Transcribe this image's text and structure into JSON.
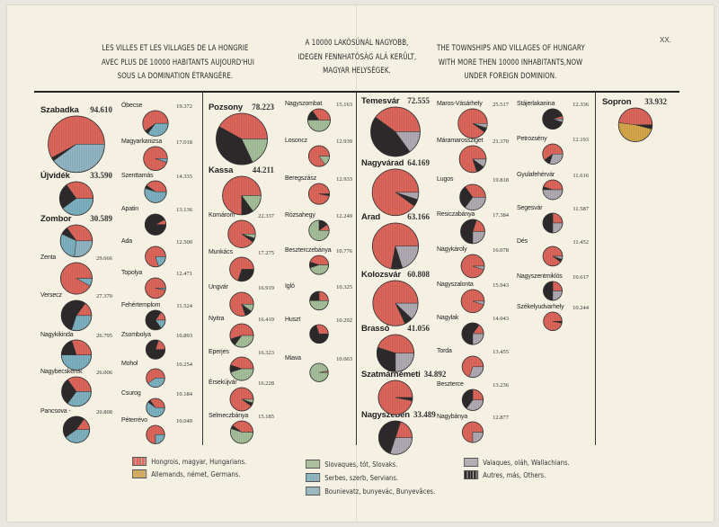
{
  "header": {
    "french": [
      "LES VILLES ET LES VILLAGES DE LA HONGRIE",
      "AVEC PLUS DE 10000 HABITANTS AUJOURD'HUI",
      "SOUS LA DOMINATION ÉTRANGÈRE."
    ],
    "hungarian": [
      "A 10000 LAKÓSÚNÁL NAGYOBB,",
      "IDEGEN FENNHATÓSÁG ALÁ KERÜLT,",
      "MAGYAR HELYSÉGEK."
    ],
    "english": [
      "THE TOWNSHIPS AND VILLAGES OF HUNGARY",
      "WITH MORE THEN 10000 INHABITANTS,NOW",
      "UNDER FOREIGN DOMINION."
    ],
    "page_number": "XX."
  },
  "colors": {
    "hun": "#e0675c",
    "ger": "#d8aa4c",
    "slo": "#a8c29c",
    "ser": "#7fb3c4",
    "bun": "#93b9c8",
    "wal": "#b3adb6",
    "oth": "#2d2b2c"
  },
  "legend": [
    {
      "key": "hun",
      "label": "Hongrois,  magyar, Hungarians."
    },
    {
      "key": "ger",
      "label": "Allemands,  német, Germans."
    },
    {
      "key": "slo",
      "label": "Slovaques, tót, Slovaks."
    },
    {
      "key": "ser",
      "label": "Serbes,  szerb, Servians."
    },
    {
      "key": "bun",
      "label": "Bounievatz, bunyevác, Bunyevâces."
    },
    {
      "key": "wal",
      "label": "Valaques, oláh, Wallachians."
    },
    {
      "key": "oth",
      "label": "Autres,  más, Others."
    }
  ],
  "chart_data": {
    "type": "pie",
    "title": "Towns and villages of Hungary with more than 10000 inhabitants now under foreign dominion",
    "unit": "share of population by nationality (approx.)",
    "columns": [
      {
        "towns": [
          {
            "name": "Szabadka",
            "population": "94.610",
            "shares": {
              "hun": 0.58,
              "oth": 0.02,
              "bun": 0.4
            }
          },
          {
            "name": "Újvidék",
            "population": "33.590",
            "shares": {
              "hun": 0.35,
              "oth": 0.25,
              "ser": 0.4
            }
          },
          {
            "name": "Zombor",
            "population": "30.589",
            "shares": {
              "hun": 0.35,
              "oth": 0.08,
              "ser": 0.3,
              "bun": 0.27
            }
          },
          {
            "name": "Zenta",
            "population": "29.666",
            "shares": {
              "hun": 0.92,
              "ser": 0.08
            }
          },
          {
            "name": "Versecz",
            "population": "27.370",
            "shares": {
              "hun": 0.15,
              "oth": 0.55,
              "ser": 0.3
            }
          },
          {
            "name": "Nagykikinda",
            "population": "26.795",
            "shares": {
              "hun": 0.3,
              "oth": 0.2,
              "ser": 0.5
            }
          },
          {
            "name": "Nagybecskerek",
            "population": "26.006",
            "shares": {
              "hun": 0.35,
              "oth": 0.3,
              "ser": 0.35
            }
          },
          {
            "name": "Pancsova -",
            "population": "20.808",
            "shares": {
              "hun": 0.15,
              "oth": 0.45,
              "ser": 0.4
            }
          }
        ]
      },
      {
        "towns": [
          {
            "name": "Óbecse",
            "population": "19.372",
            "shares": {
              "hun": 0.6,
              "oth": 0.05,
              "ser": 0.35
            }
          },
          {
            "name": "Magyarkanizsa",
            "population": "17.018",
            "shares": {
              "hun": 0.95,
              "ser": 0.05
            }
          },
          {
            "name": "Szenttamás",
            "population": "14.335",
            "shares": {
              "hun": 0.4,
              "oth": 0.05,
              "ser": 0.55
            }
          },
          {
            "name": "Apatin",
            "population": "13.136",
            "shares": {
              "hun": 0.08,
              "oth": 0.92
            }
          },
          {
            "name": "Ada",
            "population": "12.500",
            "shares": {
              "hun": 0.8,
              "ser": 0.2
            }
          },
          {
            "name": "Topolya",
            "population": "12.471",
            "shares": {
              "hun": 0.97,
              "ser": 0.03
            }
          },
          {
            "name": "Fehértemplom",
            "population": "11.524",
            "shares": {
              "hun": 0.15,
              "oth": 0.7,
              "ser": 0.15
            }
          },
          {
            "name": "Zsombolya",
            "population": "10.893",
            "shares": {
              "hun": 0.2,
              "oth": 0.8
            }
          },
          {
            "name": "Mohol",
            "population": "10.254",
            "shares": {
              "hun": 0.6,
              "ser": 0.4
            }
          },
          {
            "name": "Csurog",
            "population": "10.184",
            "shares": {
              "hun": 0.35,
              "oth": 0.05,
              "ser": 0.6
            }
          },
          {
            "name": "Péterrévo",
            "population": "10.049",
            "shares": {
              "hun": 0.75,
              "ser": 0.25
            }
          }
        ]
      },
      {
        "towns": [
          {
            "name": "Pozsony",
            "population": "78.223",
            "shares": {
              "hun": 0.42,
              "oth": 0.4,
              "slo": 0.18
            }
          },
          {
            "name": "Kassa",
            "population": "44.211",
            "shares": {
              "hun": 0.75,
              "oth": 0.1,
              "slo": 0.15
            }
          },
          {
            "name": "Komárom",
            "population": "22.337",
            "shares": {
              "hun": 0.9,
              "oth": 0.05,
              "slo": 0.05
            }
          },
          {
            "name": "Munkács",
            "population": "17.275",
            "shares": {
              "hun": 0.7,
              "oth": 0.3
            }
          },
          {
            "name": "Ungvár",
            "population": "16.919",
            "shares": {
              "hun": 0.8,
              "oth": 0.1,
              "slo": 0.1
            }
          },
          {
            "name": "Nyitra",
            "population": "16.419",
            "shares": {
              "hun": 0.55,
              "oth": 0.1,
              "slo": 0.35
            }
          },
          {
            "name": "Eperjes",
            "population": "16.323",
            "shares": {
              "hun": 0.45,
              "oth": 0.1,
              "slo": 0.45
            }
          },
          {
            "name": "Érsekújvár",
            "population": "16.228",
            "shares": {
              "hun": 0.9,
              "oth": 0.05,
              "slo": 0.05
            }
          },
          {
            "name": "Selmeczbánya",
            "population": "15.185",
            "shares": {
              "hun": 0.4,
              "oth": 0.05,
              "slo": 0.55
            }
          }
        ]
      },
      {
        "towns": [
          {
            "name": "Nagyszombat",
            "population": "15.163",
            "shares": {
              "hun": 0.35,
              "oth": 0.15,
              "slo": 0.5
            }
          },
          {
            "name": "Losoncz",
            "population": "12.939",
            "shares": {
              "hun": 0.85,
              "slo": 0.15
            }
          },
          {
            "name": "Beregszász",
            "population": "12.933",
            "shares": {
              "hun": 0.97,
              "oth": 0.03
            }
          },
          {
            "name": "Rózsahegy",
            "population": "12.249",
            "shares": {
              "hun": 0.1,
              "oth": 0.15,
              "slo": 0.75
            }
          },
          {
            "name": "Beszterczebánya",
            "population": "10.776",
            "shares": {
              "hun": 0.45,
              "oth": 0.1,
              "slo": 0.45
            }
          },
          {
            "name": "Igló",
            "population": "10.325",
            "shares": {
              "hun": 0.25,
              "oth": 0.25,
              "slo": 0.5
            }
          },
          {
            "name": "Huszt",
            "population": "10.292",
            "shares": {
              "hun": 0.3,
              "oth": 0.7
            }
          },
          {
            "name": "Miava",
            "population": "10.063",
            "shares": {
              "hun": 0.03,
              "slo": 0.97
            }
          }
        ]
      },
      {
        "towns": [
          {
            "name": "Temesvár",
            "population": "72.555",
            "shares": {
              "hun": 0.4,
              "oth": 0.45,
              "wal": 0.15
            }
          },
          {
            "name": "Nagyvárad",
            "population": "64.169",
            "shares": {
              "hun": 0.9,
              "oth": 0.05,
              "wal": 0.05
            }
          },
          {
            "name": "Arad",
            "population": "63.166",
            "shares": {
              "hun": 0.72,
              "oth": 0.08,
              "wal": 0.2
            }
          },
          {
            "name": "Kolozsvár",
            "population": "60.808",
            "shares": {
              "hun": 0.82,
              "oth": 0.06,
              "wal": 0.12
            }
          },
          {
            "name": "Brassó",
            "population": "41.056",
            "shares": {
              "hun": 0.45,
              "oth": 0.3,
              "wal": 0.25
            }
          },
          {
            "name": "Szatmárnémeti",
            "population": "34.892",
            "shares": {
              "hun": 0.97,
              "oth": 0.03
            }
          },
          {
            "name": "Nagyszeben",
            "population": "33.489",
            "shares": {
              "hun": 0.2,
              "oth": 0.5,
              "wal": 0.3
            }
          }
        ]
      },
      {
        "towns": [
          {
            "name": "Maros-Vásárhely",
            "population": "25.517",
            "shares": {
              "hun": 0.9,
              "oth": 0.05,
              "wal": 0.05
            }
          },
          {
            "name": "Máramarossziget",
            "population": "21.370",
            "shares": {
              "hun": 0.8,
              "oth": 0.1,
              "wal": 0.1
            }
          },
          {
            "name": "Lugos",
            "population": "19.818",
            "shares": {
              "hun": 0.35,
              "oth": 0.3,
              "wal": 0.35
            }
          },
          {
            "name": "Resiczabánya",
            "population": "17.384",
            "shares": {
              "hun": 0.2,
              "oth": 0.55,
              "wal": 0.25
            }
          },
          {
            "name": "Nagykároly",
            "population": "16.078",
            "shares": {
              "hun": 0.95,
              "wal": 0.05
            }
          },
          {
            "name": "Nagyszalonta",
            "population": "15.943",
            "shares": {
              "hun": 0.95,
              "wal": 0.05
            }
          },
          {
            "name": "Nagylak",
            "population": "14.043",
            "shares": {
              "hun": 0.15,
              "oth": 0.6,
              "wal": 0.25
            }
          },
          {
            "name": "Torda",
            "population": "13.455",
            "shares": {
              "hun": 0.7,
              "wal": 0.3
            }
          },
          {
            "name": "Beszterce",
            "population": "13.236",
            "shares": {
              "hun": 0.25,
              "oth": 0.4,
              "wal": 0.35
            }
          },
          {
            "name": "Nagybánya",
            "population": "12.877",
            "shares": {
              "hun": 0.75,
              "wal": 0.25
            }
          }
        ]
      },
      {
        "towns": [
          {
            "name": "Stájerlakanina",
            "population": "12.336",
            "shares": {
              "hun": 0.05,
              "oth": 0.9,
              "wal": 0.05
            }
          },
          {
            "name": "Petrozsény",
            "population": "12.193",
            "shares": {
              "hun": 0.6,
              "oth": 0.1,
              "wal": 0.3
            }
          },
          {
            "name": "Gyulafehérvár",
            "population": "11.616",
            "shares": {
              "hun": 0.45,
              "oth": 0.05,
              "wal": 0.5
            }
          },
          {
            "name": "Segesvár",
            "population": "11.587",
            "shares": {
              "hun": 0.25,
              "oth": 0.5,
              "wal": 0.25
            }
          },
          {
            "name": "Dés",
            "population": "11.452",
            "shares": {
              "hun": 0.9,
              "oth": 0.05,
              "wal": 0.05
            }
          },
          {
            "name": "Nagyszentmiklós",
            "population": "10.617",
            "shares": {
              "hun": 0.25,
              "oth": 0.5,
              "wal": 0.25
            }
          },
          {
            "name": "Székelyudvarhely",
            "population": "10.244",
            "shares": {
              "hun": 0.97,
              "oth": 0.03
            }
          }
        ]
      },
      {
        "towns": [
          {
            "name": "Sopron",
            "population": "33.932",
            "shares": {
              "hun": 0.48,
              "oth": 0.04,
              "ger": 0.48
            }
          }
        ]
      }
    ]
  }
}
